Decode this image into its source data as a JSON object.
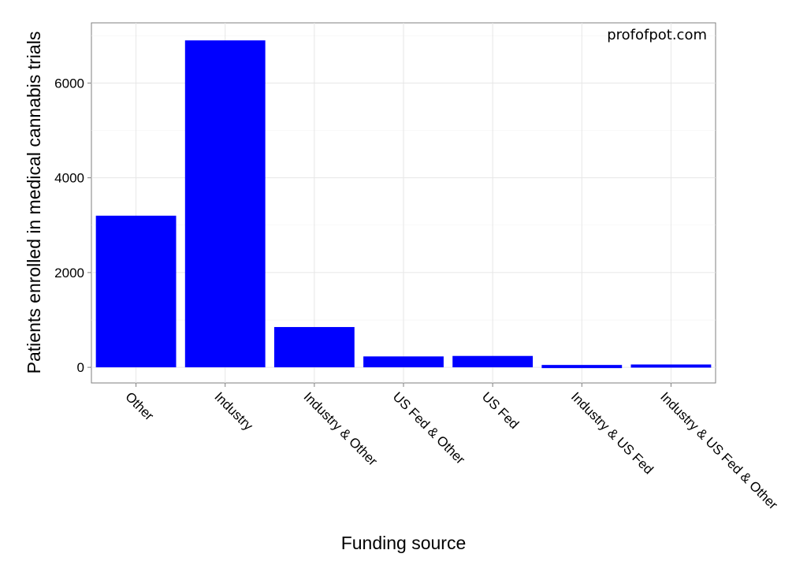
{
  "chart_data": {
    "type": "bar",
    "categories": [
      "Other",
      "Industry",
      "Industry & Other",
      "US Fed & Other",
      "US Fed",
      "Industry & US Fed",
      "Industry & US Fed & Other"
    ],
    "values": [
      3200,
      6900,
      850,
      230,
      240,
      50,
      60
    ],
    "xlabel": "Funding source",
    "ylabel": "Patients enrolled in medical cannabis trials",
    "ylim": [
      -330,
      7270
    ],
    "yticks": [
      0,
      2000,
      4000,
      6000
    ],
    "grid": true,
    "bar_color": "#0000ff",
    "annotation": "profofpot.com"
  }
}
